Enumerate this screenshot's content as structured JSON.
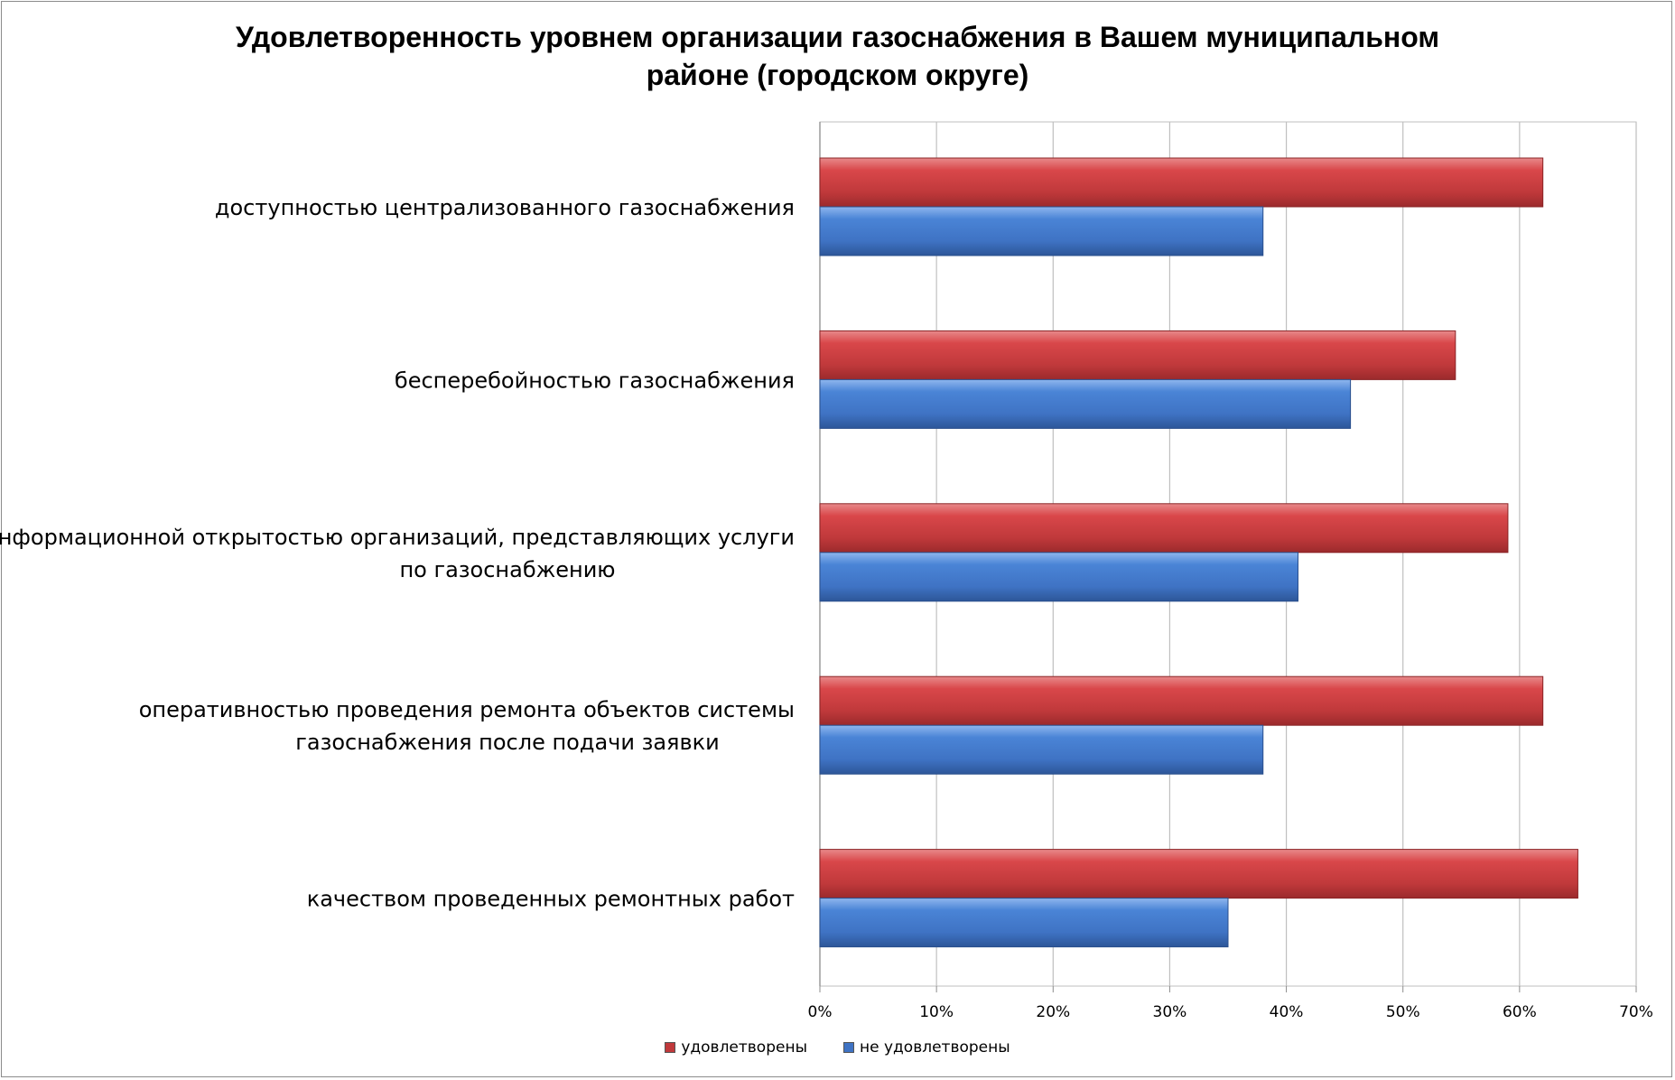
{
  "chart_data": {
    "type": "bar",
    "orientation": "horizontal",
    "title_lines": [
      "Удовлетворенность уровнем организации газоснабжения в Вашем муниципальном",
      "районе (городском округе)"
    ],
    "categories": [
      [
        "доступностью централизованного газоснабжения"
      ],
      [
        "бесперебойностью  газоснабжения"
      ],
      [
        "информационной открытостью организаций, представляющих услуги",
        "по газоснабжению"
      ],
      [
        "оперативностью проведения ремонта объектов системы",
        "газоснабжения после подачи заявки"
      ],
      [
        "качеством проведенных ремонтных работ"
      ]
    ],
    "series": [
      {
        "name": "удовлетворены",
        "color": "#c0393b",
        "values": [
          62,
          54.5,
          59,
          62,
          65
        ]
      },
      {
        "name": "не удовлетворены",
        "color": "#3f73c4",
        "values": [
          38,
          45.5,
          41,
          38,
          35
        ]
      }
    ],
    "xlim": [
      0,
      70
    ],
    "xticks": [
      "0%",
      "10%",
      "20%",
      "30%",
      "40%",
      "50%",
      "60%",
      "70%"
    ],
    "grid": true,
    "legend_position": "bottom"
  }
}
